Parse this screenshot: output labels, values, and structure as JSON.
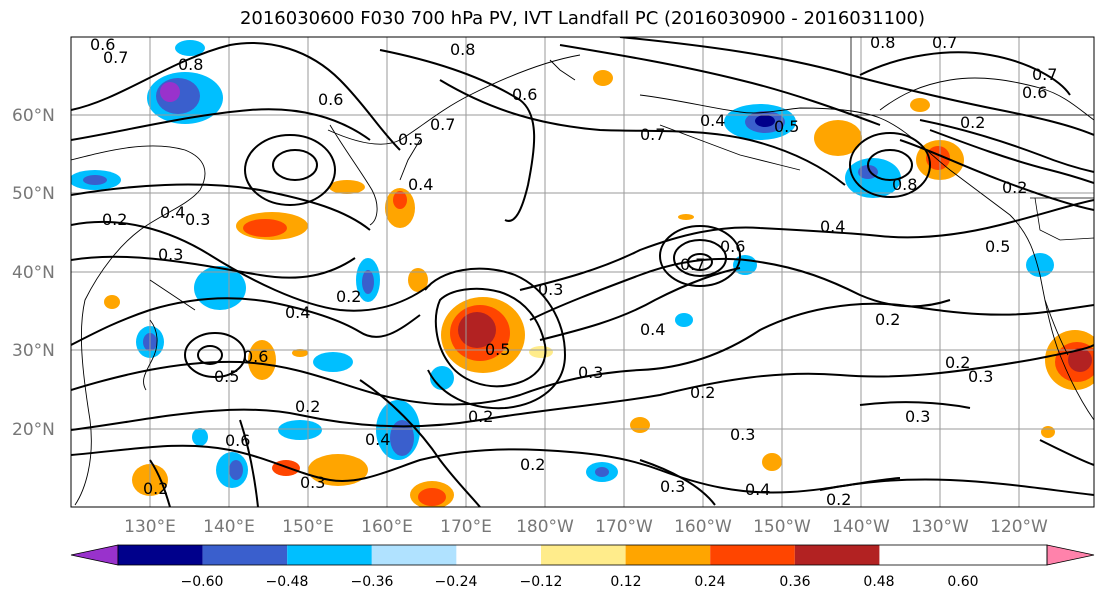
{
  "title": "2016030600 F030 700 hPa PV, IVT Landfall PC (2016030900 - 2016031100)",
  "latitude_labels": [
    "60°N",
    "50°N",
    "40°N",
    "30°N",
    "20°N"
  ],
  "longitude_labels": [
    "130°E",
    "140°E",
    "150°E",
    "160°E",
    "170°E",
    "180°W",
    "170°W",
    "160°W",
    "150°W",
    "140°W",
    "130°W",
    "120°W"
  ],
  "colorbar": {
    "tick_labels": [
      "−0.60",
      "−0.48",
      "−0.36",
      "−0.24",
      "−0.12",
      "0.12",
      "0.24",
      "0.36",
      "0.48",
      "0.60"
    ],
    "colors": [
      "#9932cc",
      "#00008b",
      "#3a5fcd",
      "#00bfff",
      "#b0e2ff",
      "#ffffff",
      "#ffec8b",
      "#ffa500",
      "#ff4500",
      "#b22222",
      "#ff82ab"
    ]
  },
  "contour_labels": {
    "c1": "0.6",
    "c2": "0.7",
    "c3": "0.8",
    "c4": "0.6",
    "c5": "0.7",
    "c6": "0.5",
    "c7": "0.4",
    "c8": "0.7",
    "c9": "0.6",
    "c10": "0.5",
    "c11": "0.4",
    "c12": "0.8",
    "c13": "0.7",
    "c14": "0.8",
    "c15": "0.7",
    "c16": "0.6",
    "c17": "0.2",
    "c18": "0.8",
    "c19": "0.2",
    "c20": "0.2",
    "c21": "0.4",
    "c22": "0.3",
    "c23": "0.3",
    "c24": "0.2",
    "c25": "0.4",
    "c26": "0.5",
    "c27": "0.3",
    "c28": "0.4",
    "c29": "0.6",
    "c30": "0.7",
    "c31": "0.4",
    "c32": "0.2",
    "c33": "0.5",
    "c34": "0.6",
    "c35": "0.5",
    "c36": "0.2",
    "c37": "0.4",
    "c38": "0.2",
    "c39": "0.3",
    "c40": "0.3",
    "c41": "0.2",
    "c42": "0.2",
    "c43": "0.2",
    "c44": "0.3",
    "c45": "0.3",
    "c46": "0.3",
    "c47": "0.4",
    "c48": "0.2",
    "c49": "0.3",
    "c50": "0.2",
    "c51": "0.6"
  }
}
